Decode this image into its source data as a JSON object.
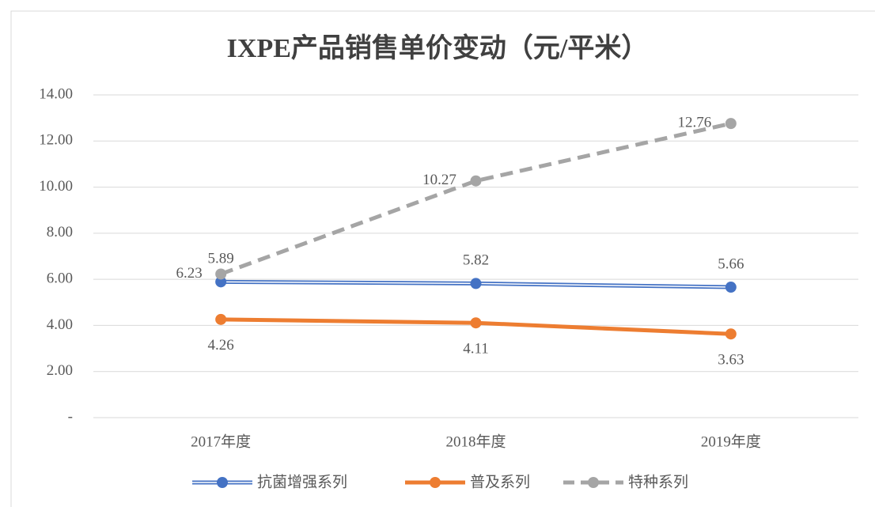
{
  "chart_data": {
    "type": "line",
    "title": "IXPE产品销售单价变动（元/平米）",
    "categories": [
      "2017年度",
      "2018年度",
      "2019年度"
    ],
    "series": [
      {
        "name": "抗菌增强系列",
        "color": "#4472c4",
        "values": [
          5.89,
          5.82,
          5.66
        ]
      },
      {
        "name": "普及系列",
        "color": "#ed7d31",
        "values": [
          4.26,
          4.11,
          3.63
        ]
      },
      {
        "name": "特种系列",
        "color": "#a5a5a5",
        "values": [
          6.23,
          10.27,
          12.76
        ]
      }
    ],
    "ylim": [
      0,
      14
    ],
    "yticks": [
      {
        "value": 0,
        "label": "-"
      },
      {
        "value": 2,
        "label": "2.00"
      },
      {
        "value": 4,
        "label": "4.00"
      },
      {
        "value": 6,
        "label": "6.00"
      },
      {
        "value": 8,
        "label": "8.00"
      },
      {
        "value": 10,
        "label": "10.00"
      },
      {
        "value": 12,
        "label": "12.00"
      },
      {
        "value": 14,
        "label": "14.00"
      }
    ],
    "grid": true,
    "legend": "bottom"
  }
}
